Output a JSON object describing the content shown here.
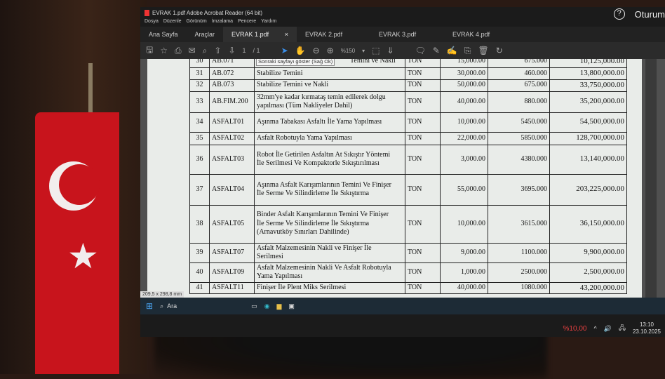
{
  "window": {
    "title": "EVRAK 1.pdf  Adobe Acrobat Reader (64 bit)",
    "help_icon": "?",
    "signin": "Oturum"
  },
  "menu": [
    "Dosya",
    "Düzenle",
    "Görünüm",
    "İmzalama",
    "Pencere",
    "Yardım"
  ],
  "tabs": {
    "home": "Ana Sayfa",
    "tools": "Araçlar",
    "docs": [
      "EVRAK 1.pdf",
      "EVRAK 2.pdf",
      "EVRAK 3.pdf",
      "EVRAK 4.pdf"
    ],
    "close": "×"
  },
  "toolbar": {
    "page_current": "1",
    "page_total": "/ 1",
    "zoom": "%150"
  },
  "tooltip": "Sonraki sayfayı göster (Sağ Ok)",
  "page_size": "209,5 x 298,8 mm",
  "table": {
    "rows": [
      {
        "no": "30",
        "code": "AB.071",
        "desc": "Temini ve Nakli",
        "unit": "TON",
        "qty": "15,000.00",
        "price": "675.000",
        "total": "10,125,000.00"
      },
      {
        "no": "31",
        "code": "AB.072",
        "desc": "Stabilize Temini",
        "unit": "TON",
        "qty": "30,000.00",
        "price": "460.000",
        "total": "13,800,000.00"
      },
      {
        "no": "32",
        "code": "AB.073",
        "desc": "Stabilize Temini ve Nakli",
        "unit": "TON",
        "qty": "50,000.00",
        "price": "675.000",
        "total": "33,750,000.00"
      },
      {
        "no": "33",
        "code": "AB.FIM.200",
        "desc": "32mm'ye kadar kırmataş temin edilerek dolgu\nyapılması (Tüm Nakliyeler Dahil)",
        "unit": "TON",
        "qty": "40,000.00",
        "price": "880.000",
        "total": "35,200,000.00"
      },
      {
        "no": "34",
        "code": "ASFALT01",
        "desc": "Aşınma Tabakası Asfaltı İle Yama Yapılması",
        "unit": "TON",
        "qty": "10,000.00",
        "price": "5450.000",
        "total": "54,500,000.00"
      },
      {
        "no": "35",
        "code": "ASFALT02",
        "desc": "Asfalt Robotuyla Yama Yapılması",
        "unit": "TON",
        "qty": "22,000.00",
        "price": "5850.000",
        "total": "128,700,000.00"
      },
      {
        "no": "36",
        "code": "ASFALT03",
        "desc": "Robot İle Getirilen Asfaltın At Sıkıştır Yöntemi\nİle Serilmesi Ve Kompaktorle Sıkıştırılması",
        "unit": "TON",
        "qty": "3,000.00",
        "price": "4380.000",
        "total": "13,140,000.00"
      },
      {
        "no": "37",
        "code": "ASFALT04",
        "desc": "Aşınma Asfalt Karışımlarının Temini Ve Finişer\nİle Serme Ve Silindirleme İle Sıkıştırma",
        "unit": "TON",
        "qty": "55,000.00",
        "price": "3695.000",
        "total": "203,225,000.00"
      },
      {
        "no": "38",
        "code": "ASFALT05",
        "desc": "Binder Asfalt Karışımlarının Temini Ve Finişer\nİle Serme Ve Silindirleme İle Sıkıştırma\n(Arnavutköy Sınırları Dahilinde)",
        "unit": "TON",
        "qty": "10,000.00",
        "price": "3615.000",
        "total": "36,150,000.00"
      },
      {
        "no": "39",
        "code": "ASFALT07",
        "desc": "Asfalt Malzemesinin Nakli ve Finişer İle\nSerilmesi",
        "unit": "TON",
        "qty": "9,000.00",
        "price": "1100.000",
        "total": "9,900,000.00"
      },
      {
        "no": "40",
        "code": "ASFALT09",
        "desc": "Asfalt Malzemesinin Nakli Ve Asfalt Robotuyla\nYama Yapılması",
        "unit": "TON",
        "qty": "1,000.00",
        "price": "2500.000",
        "total": "2,500,000.00"
      },
      {
        "no": "41",
        "code": "ASFALT11",
        "desc": "Finişer İle Plent Miks Serilmesi",
        "unit": "TON",
        "qty": "40,000.00",
        "price": "1080.000",
        "total": "43,200,000.00"
      }
    ]
  },
  "taskbar": {
    "search": "Ara",
    "battery_pct": "%10,00",
    "time": "13:10",
    "date": "23.10.2025"
  }
}
